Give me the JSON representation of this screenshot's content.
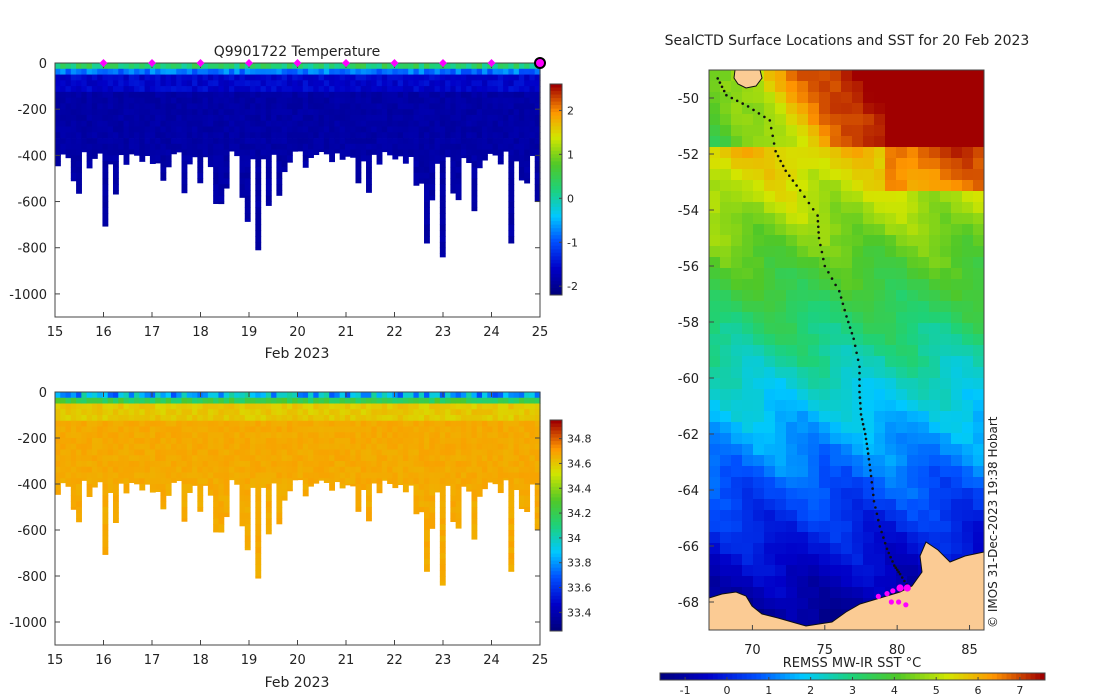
{
  "chart_data": [
    {
      "id": "temp",
      "type": "heatmap",
      "title": "Q9901722  Temperature",
      "xlabel": "Feb 2023",
      "ylabel": "",
      "xlim": [
        15,
        25
      ],
      "ylim": [
        -1100,
        0
      ],
      "xticks": [
        "15",
        "16",
        "17",
        "18",
        "19",
        "20",
        "21",
        "22",
        "23",
        "24",
        "25"
      ],
      "yticks": [
        "0",
        "-200",
        "-400",
        "-600",
        "-800",
        "-1000"
      ],
      "colorbar": {
        "min": -2.2,
        "max": 2.6,
        "ticks": [
          "2",
          "1",
          "0",
          "-1",
          "-2"
        ],
        "tick_values": [
          2,
          1,
          0,
          -1,
          -2
        ]
      },
      "surface_markers_days": [
        16,
        17,
        18,
        19,
        20,
        21,
        22,
        23,
        24
      ],
      "latest_marker_day": 25,
      "marker_color": "#ff00ff"
    },
    {
      "id": "sal",
      "type": "heatmap",
      "title": "",
      "xlabel": "Feb 2023",
      "ylabel": "",
      "xlim": [
        15,
        25
      ],
      "ylim": [
        -1100,
        0
      ],
      "xticks": [
        "15",
        "16",
        "17",
        "18",
        "19",
        "20",
        "21",
        "22",
        "23",
        "24",
        "25"
      ],
      "yticks": [
        "0",
        "-200",
        "-400",
        "-600",
        "-800",
        "-1000"
      ],
      "colorbar": {
        "min": 33.25,
        "max": 34.95,
        "ticks": [
          "34.8",
          "34.6",
          "34.4",
          "34.2",
          "34",
          "33.8",
          "33.6",
          "33.4"
        ],
        "tick_values": [
          34.8,
          34.6,
          34.4,
          34.2,
          34.0,
          33.8,
          33.6,
          33.4
        ]
      }
    },
    {
      "id": "map",
      "type": "heatmap",
      "title": "SealCTD Surface Locations and SST for 20 Feb 2023",
      "xlim": [
        67,
        86
      ],
      "ylim": [
        -69,
        -49
      ],
      "xticks": [
        "70",
        "75",
        "80",
        "85"
      ],
      "yticks": [
        "-50",
        "-52",
        "-54",
        "-56",
        "-58",
        "-60",
        "-62",
        "-64",
        "-66",
        "-68"
      ],
      "colorbar": {
        "label": "REMSS MW-IR SST °C",
        "min": -1.6,
        "max": 7.6,
        "ticks": [
          "-1",
          "0",
          "1",
          "2",
          "3",
          "4",
          "5",
          "6",
          "7"
        ],
        "tick_values": [
          -1,
          0,
          1,
          2,
          3,
          4,
          5,
          6,
          7
        ]
      },
      "track": [
        [
          67.6,
          -49.3
        ],
        [
          68.2,
          -49.9
        ],
        [
          69.7,
          -50.3
        ],
        [
          71.2,
          -50.8
        ],
        [
          71.6,
          -51.9
        ],
        [
          72.3,
          -52.6
        ],
        [
          73.3,
          -53.3
        ],
        [
          74.5,
          -54.2
        ],
        [
          74.6,
          -55.0
        ],
        [
          75.0,
          -56.0
        ],
        [
          76.0,
          -56.9
        ],
        [
          76.5,
          -57.8
        ],
        [
          77.0,
          -58.6
        ],
        [
          77.4,
          -59.6
        ],
        [
          77.4,
          -60.5
        ],
        [
          77.5,
          -61.3
        ],
        [
          77.8,
          -62.0
        ],
        [
          78.0,
          -62.7
        ],
        [
          78.2,
          -63.5
        ],
        [
          78.4,
          -64.4
        ],
        [
          78.8,
          -65.3
        ],
        [
          79.3,
          -66.1
        ],
        [
          79.8,
          -66.7
        ],
        [
          80.2,
          -67.0
        ],
        [
          80.8,
          -67.5
        ]
      ],
      "recent_positions": [
        [
          78.7,
          -67.8
        ],
        [
          79.3,
          -67.7
        ],
        [
          79.7,
          -67.6
        ],
        [
          80.2,
          -67.5
        ],
        [
          80.7,
          -67.5
        ],
        [
          79.6,
          -68.0
        ],
        [
          80.1,
          -68.0
        ],
        [
          80.6,
          -68.1
        ]
      ],
      "credit": "© IMOS 31-Dec-2023 19:38 Hobart"
    }
  ]
}
